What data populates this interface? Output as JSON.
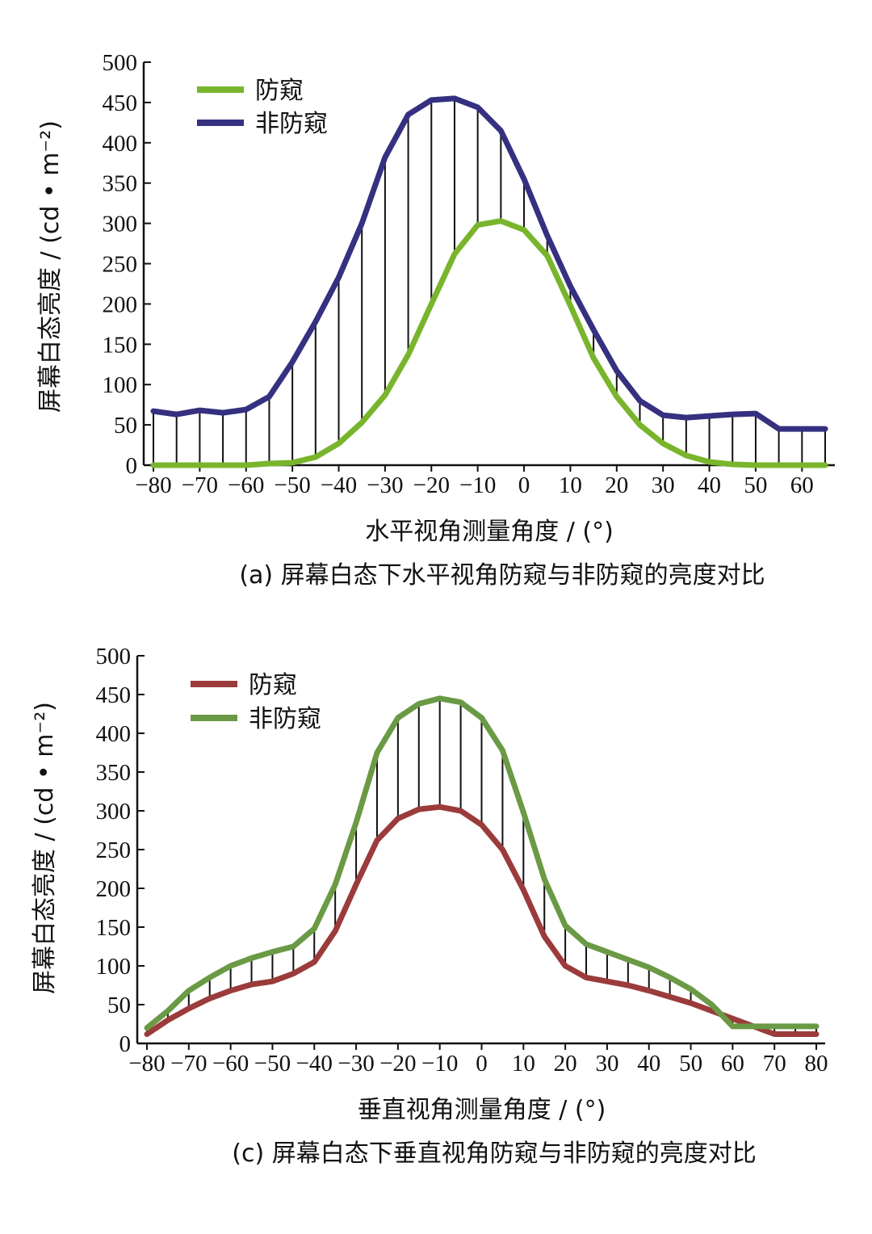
{
  "chart_data": [
    {
      "type": "line",
      "caption": "(a) 屏幕白态下水平视角防窥与非防窥的亮度对比",
      "xlabel": "水平视角测量角度 / (°)",
      "ylabel": "屏幕白态亮度 / (cd • m⁻²)",
      "xlim": [
        -80,
        65
      ],
      "ylim": [
        0,
        500
      ],
      "xticks": [
        -80,
        -70,
        -60,
        -50,
        -40,
        -30,
        -20,
        -10,
        0,
        10,
        20,
        30,
        40,
        50,
        60
      ],
      "xtick_labels": [
        "−80",
        "−70",
        "−60",
        "−50",
        "−40",
        "−30",
        "−20",
        "−10",
        "0",
        "10",
        "20",
        "30",
        "40",
        "50",
        "60"
      ],
      "yticks": [
        0,
        50,
        100,
        150,
        200,
        250,
        300,
        350,
        400,
        450,
        500
      ],
      "legend_position": "top-left",
      "x": [
        -80,
        -75,
        -70,
        -65,
        -60,
        -55,
        -50,
        -45,
        -40,
        -35,
        -30,
        -25,
        -20,
        -15,
        -10,
        -5,
        0,
        5,
        10,
        15,
        20,
        25,
        30,
        35,
        40,
        45,
        50,
        55,
        60,
        65
      ],
      "series": [
        {
          "name": "防窥",
          "color": "#79b52c",
          "values": [
            0,
            0,
            0,
            0,
            0,
            2,
            3,
            10,
            27,
            53,
            87,
            137,
            200,
            262,
            298,
            303,
            292,
            260,
            198,
            133,
            85,
            50,
            27,
            12,
            4,
            1,
            0,
            0,
            0,
            0
          ]
        },
        {
          "name": "非防窥",
          "color": "#35307f",
          "values": [
            67,
            63,
            68,
            65,
            69,
            85,
            128,
            178,
            233,
            300,
            382,
            435,
            453,
            455,
            444,
            415,
            355,
            285,
            222,
            168,
            117,
            80,
            62,
            59,
            61,
            63,
            64,
            45,
            45,
            45
          ]
        }
      ]
    },
    {
      "type": "line",
      "caption": "(c) 屏幕白态下垂直视角防窥与非防窥的亮度对比",
      "xlabel": "垂直视角测量角度 / (°)",
      "ylabel": "屏幕白态亮度 / (cd • m⁻²)",
      "xlim": [
        -80,
        80
      ],
      "ylim": [
        0,
        500
      ],
      "xticks": [
        -80,
        -70,
        -60,
        -50,
        -40,
        -30,
        -20,
        -10,
        0,
        10,
        20,
        30,
        40,
        50,
        60,
        70,
        80
      ],
      "xtick_labels": [
        "−80",
        "−70",
        "−60",
        "−50",
        "−40",
        "−30",
        "−20",
        "−10",
        "0",
        "10",
        "20",
        "30",
        "40",
        "50",
        "60",
        "70",
        "80"
      ],
      "yticks": [
        0,
        50,
        100,
        150,
        200,
        250,
        300,
        350,
        400,
        450,
        500
      ],
      "legend_position": "top-left",
      "x": [
        -80,
        -75,
        -70,
        -65,
        -60,
        -55,
        -50,
        -45,
        -40,
        -35,
        -30,
        -25,
        -20,
        -15,
        -10,
        -5,
        0,
        5,
        10,
        15,
        20,
        25,
        30,
        35,
        40,
        45,
        50,
        55,
        60,
        65,
        70,
        75,
        80
      ],
      "series": [
        {
          "name": "防窥",
          "color": "#9b3b3b",
          "values": [
            12,
            30,
            45,
            58,
            68,
            76,
            80,
            90,
            105,
            145,
            205,
            262,
            290,
            302,
            305,
            300,
            282,
            250,
            198,
            138,
            100,
            85,
            80,
            75,
            68,
            60,
            52,
            42,
            32,
            22,
            12,
            12,
            12
          ]
        },
        {
          "name": "非防窥",
          "color": "#6a9a45",
          "values": [
            20,
            42,
            68,
            85,
            100,
            110,
            118,
            125,
            148,
            205,
            285,
            375,
            420,
            438,
            445,
            440,
            420,
            378,
            298,
            212,
            152,
            128,
            118,
            108,
            98,
            85,
            70,
            50,
            22,
            22,
            22,
            22,
            22
          ]
        }
      ]
    }
  ]
}
